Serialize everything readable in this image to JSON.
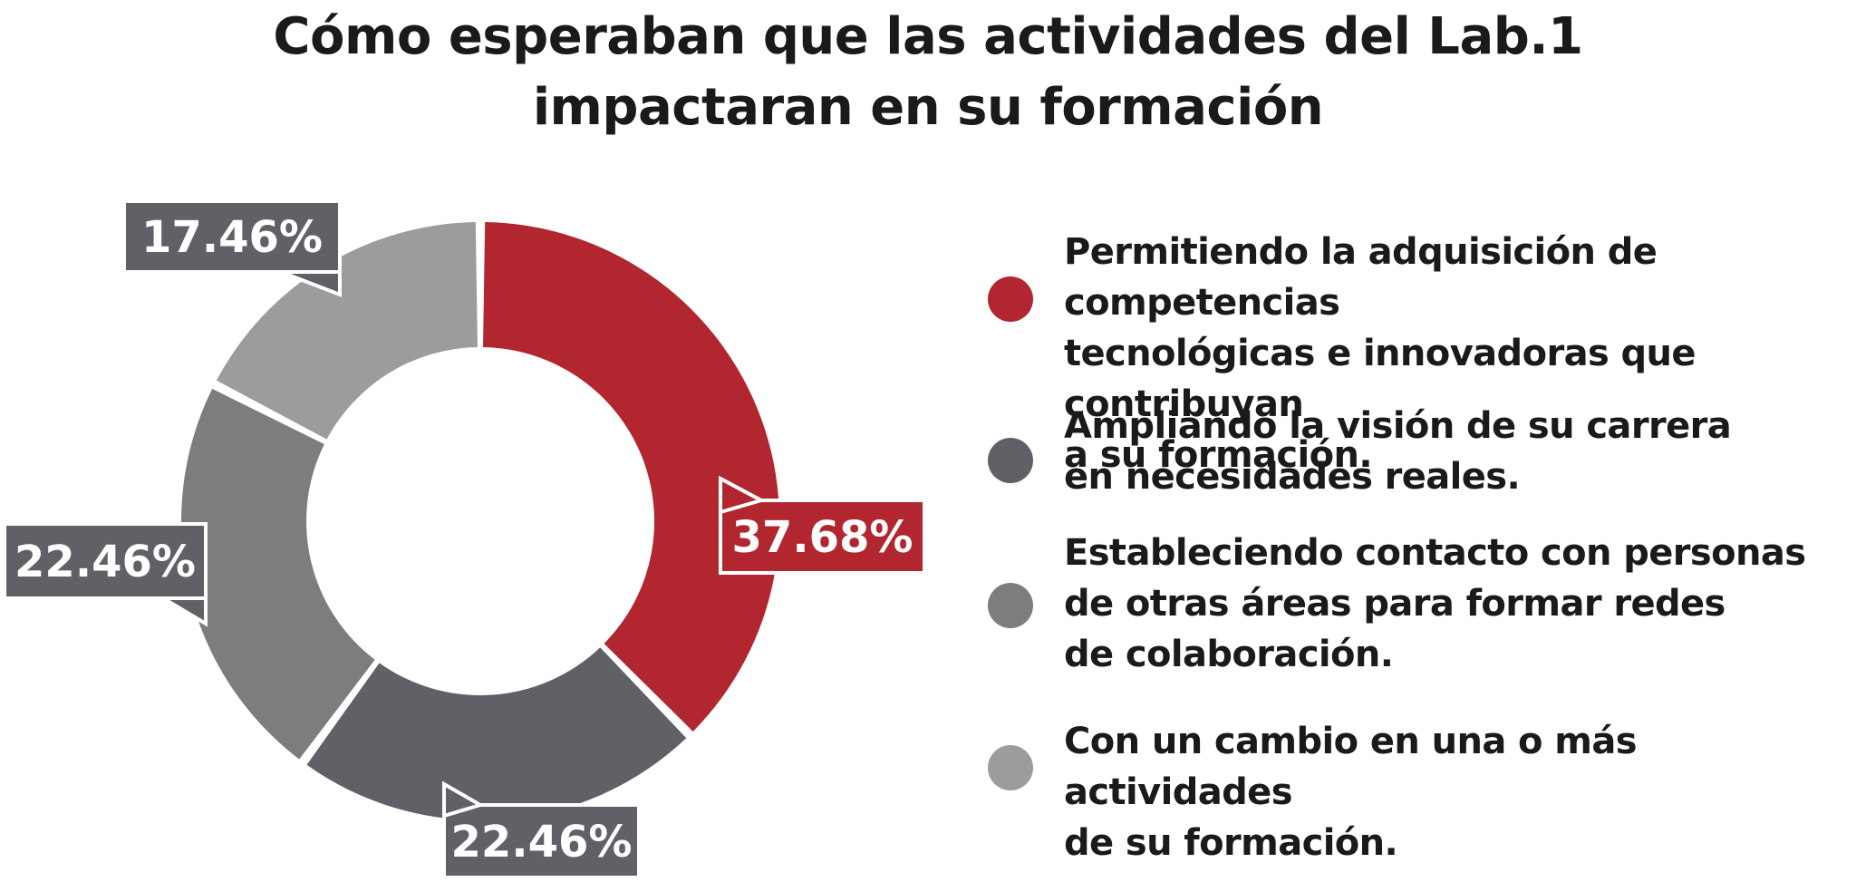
{
  "chart_data": {
    "type": "pie",
    "title_lines": [
      "Cómo esperaban que las actividades del Lab.1",
      "impactaran en su formación"
    ],
    "slices": [
      {
        "value": 37.68,
        "label": "37.68%",
        "color": "#b2262f",
        "legend": "Permitiendo la adquisición de competencias\ntecnológicas e innovadoras que contribuyan\na su formación."
      },
      {
        "value": 22.46,
        "label": "22.46%",
        "color": "#606166",
        "legend": "Ampliando la visión de su carrera\nen necesidades reales."
      },
      {
        "value": 22.46,
        "label": "22.46%",
        "color": "#7d7d7f",
        "legend": "Estableciendo contacto con personas\nde otras áreas para formar redes\nde colaboración."
      },
      {
        "value": 17.46,
        "label": "17.46%",
        "color": "#9c9c9d",
        "legend": "Con un cambio en una o más actividades\nde su formación."
      }
    ],
    "label_box_color_dark": "#606166",
    "legend_placement": "right"
  }
}
